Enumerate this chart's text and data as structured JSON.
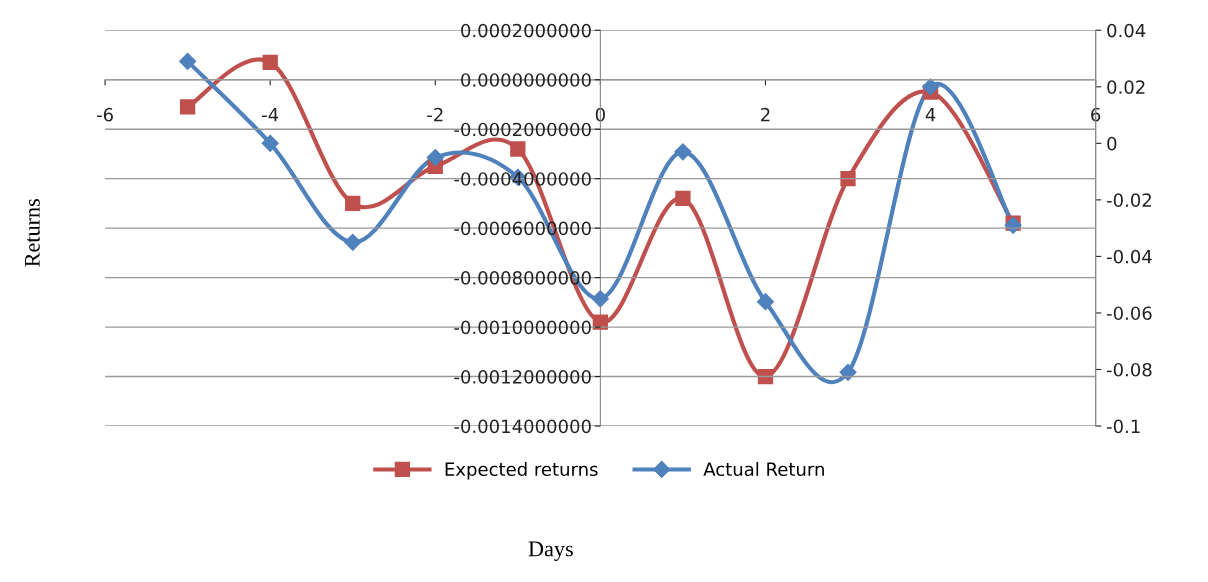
{
  "chart_data": {
    "type": "line",
    "xlabel": "Days",
    "ylabel": "Returns",
    "x": [
      -5,
      -4,
      -3,
      -2,
      -1,
      0,
      1,
      2,
      3,
      4,
      5
    ],
    "series": [
      {
        "name": "Expected returns",
        "color": "#c0504d",
        "marker": "square",
        "values": [
          -0.00011,
          7e-05,
          -0.0005,
          -0.00035,
          -0.00028,
          -0.00098,
          -0.00048,
          -0.0012,
          -0.0004,
          -5e-05,
          -0.00058
        ]
      },
      {
        "name": "Actual Return",
        "color": "#4f81bd",
        "marker": "diamond",
        "axis": "y2",
        "values": [
          0.029,
          0,
          -0.035,
          -0.005,
          -0.012,
          -0.055,
          -0.003,
          -0.056,
          -0.081,
          0.02,
          -0.029
        ]
      }
    ],
    "xlim": [
      -6,
      6
    ],
    "xticks": [
      -6,
      -4,
      -2,
      0,
      2,
      4,
      6
    ],
    "ylim": [
      -0.0014,
      0.0002
    ],
    "yticks": [
      {
        "value": -0.0014,
        "label": "-0.0014000000"
      },
      {
        "value": -0.0012,
        "label": "-0.0012000000"
      },
      {
        "value": -0.001,
        "label": "-0.0010000000"
      },
      {
        "value": -0.0008,
        "label": "-0.0008000000"
      },
      {
        "value": -0.0006,
        "label": "-0.0006000000"
      },
      {
        "value": -0.0004,
        "label": "-0.0004000000"
      },
      {
        "value": -0.0002,
        "label": "-0.0002000000"
      },
      {
        "value": 0,
        "label": "0.0000000000"
      },
      {
        "value": 0.0002,
        "label": "0.0002000000"
      }
    ],
    "y2lim": [
      -0.1,
      0.04
    ],
    "y2ticks": [
      -0.1,
      -0.08,
      -0.06,
      -0.04,
      -0.02,
      0,
      0.02,
      0.04
    ],
    "grid": "y",
    "legend": "bottom",
    "line_style": "solid"
  }
}
